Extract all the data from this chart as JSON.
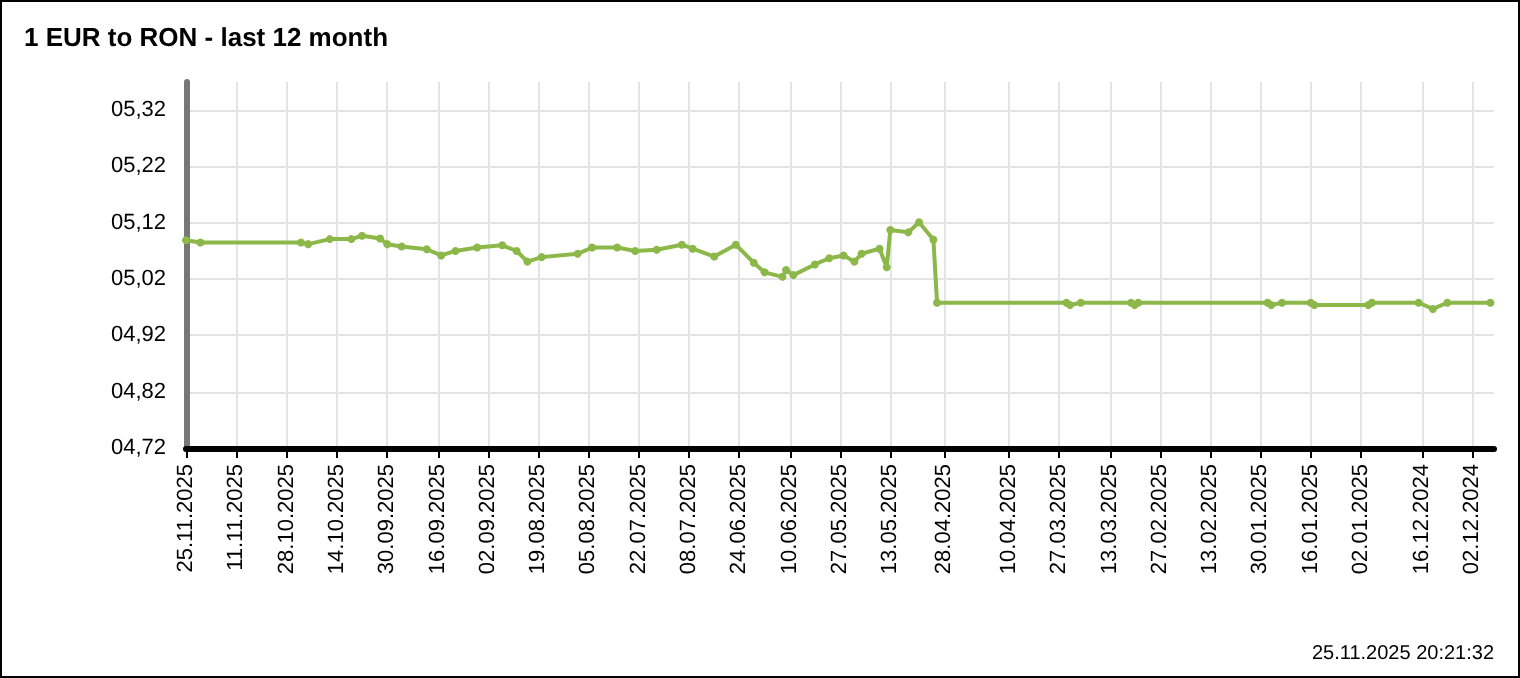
{
  "chart_data": {
    "type": "line",
    "title": "1 EUR to RON - last 12 month",
    "x": [
      "2025-11-25",
      "2025-11-21",
      "2025-10-24",
      "2025-10-22",
      "2025-10-16",
      "2025-10-10",
      "2025-10-07",
      "2025-10-02",
      "2025-09-30",
      "2025-09-26",
      "2025-09-19",
      "2025-09-15",
      "2025-09-11",
      "2025-09-05",
      "2025-08-29",
      "2025-08-25",
      "2025-08-22",
      "2025-08-18",
      "2025-08-08",
      "2025-08-04",
      "2025-07-28",
      "2025-07-23",
      "2025-07-17",
      "2025-07-10",
      "2025-07-07",
      "2025-07-01",
      "2025-06-25",
      "2025-06-20",
      "2025-06-17",
      "2025-06-12",
      "2025-06-11",
      "2025-06-09",
      "2025-06-03",
      "2025-05-30",
      "2025-05-26",
      "2025-05-23",
      "2025-05-21",
      "2025-05-16",
      "2025-05-14",
      "2025-05-13",
      "2025-05-08",
      "2025-05-05",
      "2025-05-01",
      "2025-04-30",
      "2025-03-25",
      "2025-03-24",
      "2025-03-21",
      "2025-03-07",
      "2025-03-06",
      "2025-03-05",
      "2025-01-28",
      "2025-01-27",
      "2025-01-24",
      "2025-01-16",
      "2025-01-15",
      "2024-12-31",
      "2024-12-30",
      "2024-12-17",
      "2024-12-13",
      "2024-12-09",
      "2024-11-27"
    ],
    "series": [
      {
        "color": "#8cb84a",
        "values": [
          5.089,
          5.085,
          5.085,
          5.082,
          5.091,
          5.091,
          5.097,
          5.092,
          5.082,
          5.078,
          5.073,
          5.062,
          5.07,
          5.076,
          5.08,
          5.07,
          5.051,
          5.059,
          5.065,
          5.076,
          5.076,
          5.07,
          5.072,
          5.081,
          5.074,
          5.06,
          5.081,
          5.049,
          5.032,
          5.024,
          5.036,
          5.027,
          5.046,
          5.057,
          5.062,
          5.051,
          5.065,
          5.074,
          5.041,
          5.107,
          5.103,
          5.121,
          5.09,
          4.978,
          4.978,
          4.974,
          4.978,
          4.978,
          4.974,
          4.978,
          4.978,
          4.974,
          4.978,
          4.978,
          4.974,
          4.974,
          4.978,
          4.978,
          4.967,
          4.978,
          4.978
        ]
      }
    ],
    "xlim": [
      "2025-11-25",
      "2024-11-26"
    ],
    "xticks": [
      {
        "value": "2025-11-25",
        "label": "25.11.2025"
      },
      {
        "value": "2025-11-11",
        "label": "11.11.2025"
      },
      {
        "value": "2025-10-28",
        "label": "28.10.2025"
      },
      {
        "value": "2025-10-14",
        "label": "14.10.2025"
      },
      {
        "value": "2025-09-30",
        "label": "30.09.2025"
      },
      {
        "value": "2025-09-16",
        "label": "16.09.2025"
      },
      {
        "value": "2025-09-02",
        "label": "02.09.2025"
      },
      {
        "value": "2025-08-19",
        "label": "19.08.2025"
      },
      {
        "value": "2025-08-05",
        "label": "05.08.2025"
      },
      {
        "value": "2025-07-22",
        "label": "22.07.2025"
      },
      {
        "value": "2025-07-08",
        "label": "08.07.2025"
      },
      {
        "value": "2025-06-24",
        "label": "24.06.2025"
      },
      {
        "value": "2025-06-10",
        "label": "10.06.2025"
      },
      {
        "value": "2025-05-27",
        "label": "27.05.2025"
      },
      {
        "value": "2025-05-13",
        "label": "13.05.2025"
      },
      {
        "value": "2025-04-28",
        "label": "28.04.2025"
      },
      {
        "value": "2025-04-10",
        "label": "10.04.2025"
      },
      {
        "value": "2025-03-27",
        "label": "27.03.2025"
      },
      {
        "value": "2025-03-13",
        "label": "13.03.2025"
      },
      {
        "value": "2025-02-27",
        "label": "27.02.2025"
      },
      {
        "value": "2025-02-13",
        "label": "13.02.2025"
      },
      {
        "value": "2025-01-30",
        "label": "30.01.2025"
      },
      {
        "value": "2025-01-16",
        "label": "16.01.2025"
      },
      {
        "value": "2025-01-02",
        "label": "02.01.2025"
      },
      {
        "value": "2024-12-16",
        "label": "16.12.2024"
      },
      {
        "value": "2024-12-02",
        "label": "02.12.2024"
      }
    ],
    "ylim": [
      4.72,
      5.37
    ],
    "yticks": [
      {
        "value": 4.72,
        "label": "04,72"
      },
      {
        "value": 4.82,
        "label": "04,82"
      },
      {
        "value": 4.92,
        "label": "04,92"
      },
      {
        "value": 5.02,
        "label": "05,02"
      },
      {
        "value": 5.12,
        "label": "05,12"
      },
      {
        "value": 5.22,
        "label": "05,22"
      },
      {
        "value": 5.32,
        "label": "05,32"
      }
    ],
    "grid": true,
    "marker": "circle",
    "line_style": "solid",
    "annotations": [
      "25.11.2025 20:21:32"
    ]
  }
}
